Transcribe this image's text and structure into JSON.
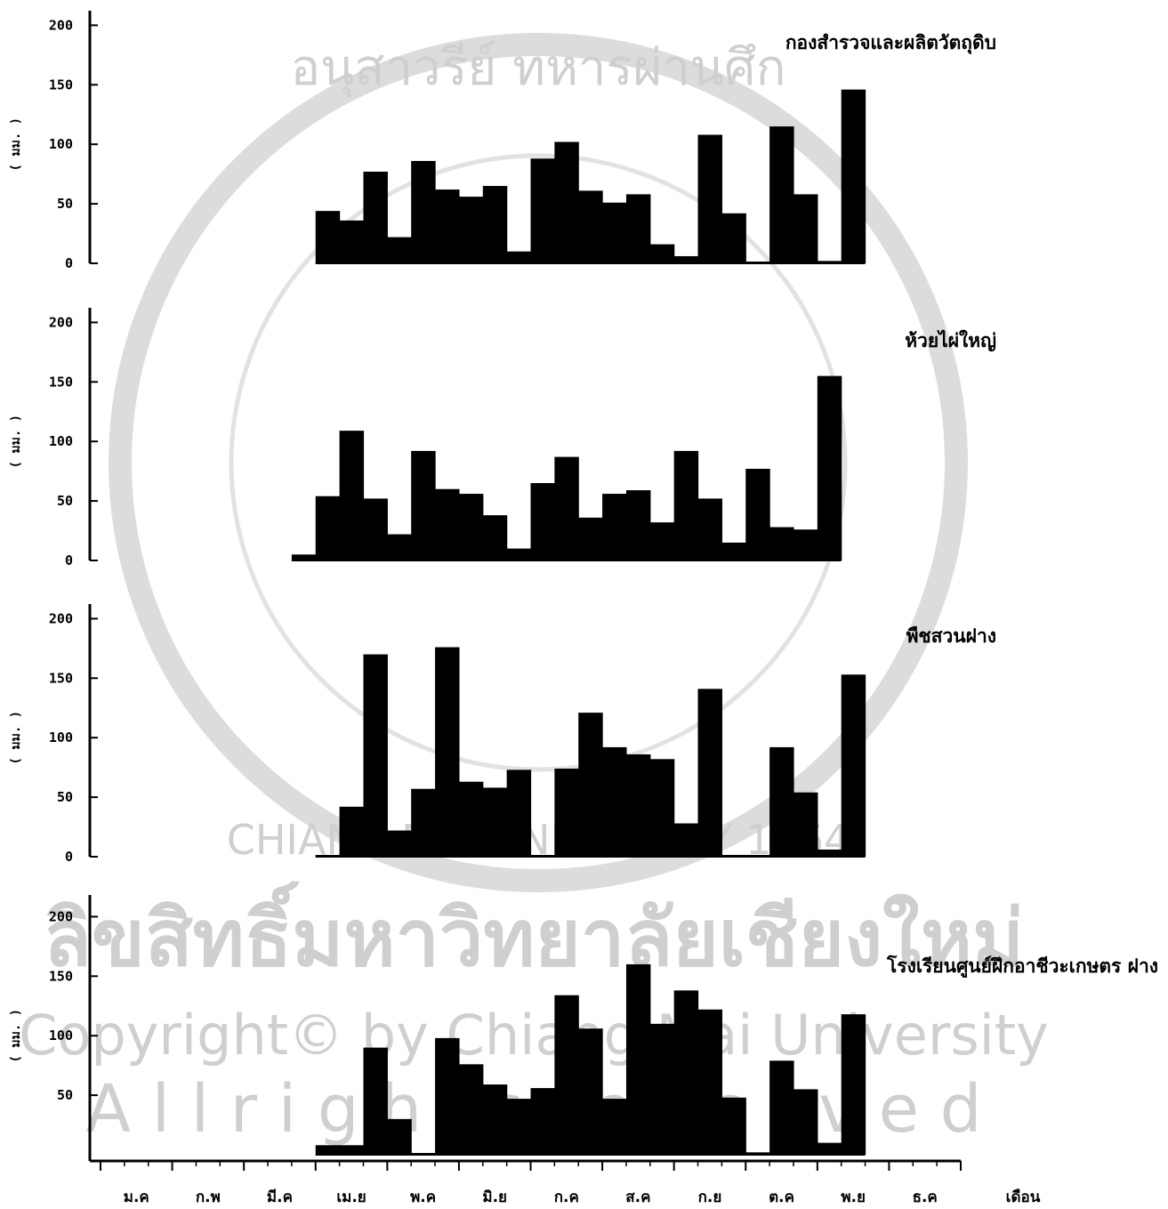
{
  "watermark": {
    "top_arc": "ลิขสิทธิ์มหาวิทยาลัยเชียงใหม่",
    "seal_thai": "อนุสาวรีย์ ทหารผ่านศึก",
    "seal_arc": "CHIANG MAI UNIVERSITY 1964",
    "line1": "ลิขสิทธิ์มหาวิทยาลัยเชียงใหม่",
    "line2": "Copyright© by Chiang Mai University",
    "line3": "A l l   r i g h t s   r e s e r v e d"
  },
  "x_axis": {
    "months": [
      "ม.ค",
      "ก.พ",
      "มี.ค",
      "เม.ย",
      "พ.ค",
      "มิ.ย",
      "ก.ค",
      "ส.ค",
      "ก.ย",
      "ต.ค",
      "พ.ย",
      "ธ.ค"
    ],
    "label": "เดือน"
  },
  "chart_data": [
    {
      "type": "bar",
      "title": "กองสำรวจและผลิตวัตถุดิบ",
      "ylabel": "( มม. )",
      "yticks": [
        0,
        50,
        100,
        150,
        200
      ],
      "ylim": [
        0,
        210
      ],
      "start_period": 9,
      "values": [
        44,
        36,
        77,
        22,
        86,
        62,
        56,
        65,
        10,
        88,
        102,
        61,
        51,
        58,
        16,
        6,
        108,
        42,
        0,
        115,
        58,
        2,
        146
      ]
    },
    {
      "type": "bar",
      "title": "ห้วยไผ่ใหญ่",
      "ylabel": "( มม. )",
      "yticks": [
        0,
        50,
        100,
        150,
        200
      ],
      "ylim": [
        0,
        210
      ],
      "start_period": 8,
      "values": [
        5,
        54,
        109,
        52,
        22,
        92,
        60,
        56,
        38,
        10,
        65,
        87,
        36,
        56,
        59,
        32,
        92,
        52,
        15,
        77,
        28,
        26,
        155
      ]
    },
    {
      "type": "bar",
      "title": "พืชสวนฝาง",
      "ylabel": "( มม. )",
      "yticks": [
        0,
        50,
        100,
        150,
        200
      ],
      "ylim": [
        0,
        210
      ],
      "start_period": 9,
      "values": [
        0,
        42,
        170,
        22,
        57,
        176,
        63,
        58,
        73,
        0,
        74,
        121,
        92,
        86,
        82,
        28,
        141,
        0,
        0,
        92,
        54,
        6,
        153
      ]
    },
    {
      "type": "bar",
      "title": "โรงเรียนศูนย์ฝึกอาชีวะเกษตร ฝาง",
      "ylabel": "( มม. )",
      "yticks": [
        50,
        100,
        150,
        200
      ],
      "ylim": [
        0,
        210
      ],
      "start_period": 9,
      "values": [
        8,
        8,
        90,
        30,
        0,
        98,
        76,
        59,
        47,
        56,
        134,
        106,
        47,
        160,
        110,
        138,
        122,
        48,
        2,
        79,
        55,
        10,
        118
      ]
    }
  ]
}
